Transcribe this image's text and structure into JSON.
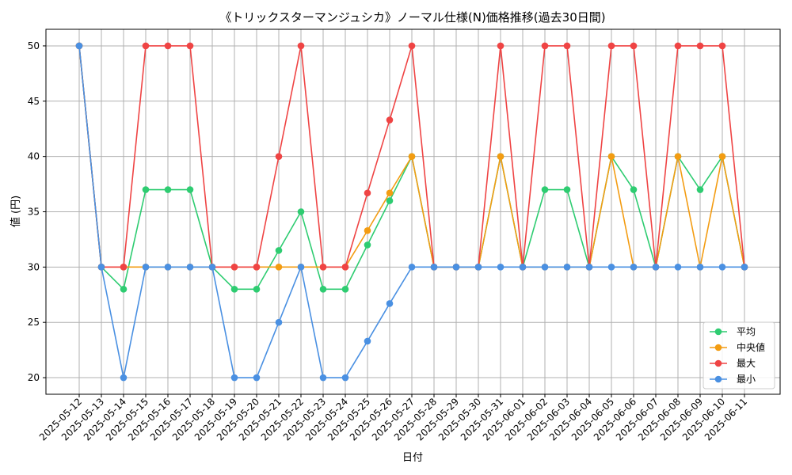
{
  "chart_data": {
    "type": "line",
    "title": "《トリックスターマンジュシカ》ノーマル仕様(N)価格推移(過去30日間)",
    "xlabel": "日付",
    "ylabel": "値 (円)",
    "ylim": [
      18.5,
      51.5
    ],
    "yticks": [
      20,
      25,
      30,
      35,
      40,
      45,
      50
    ],
    "grid": true,
    "legend_position": "bottom-right",
    "categories": [
      "2025-05-12",
      "2025-05-13",
      "2025-05-14",
      "2025-05-15",
      "2025-05-16",
      "2025-05-17",
      "2025-05-18",
      "2025-05-19",
      "2025-05-20",
      "2025-05-21",
      "2025-05-22",
      "2025-05-23",
      "2025-05-24",
      "2025-05-25",
      "2025-05-26",
      "2025-05-27",
      "2025-05-28",
      "2025-05-29",
      "2025-05-30",
      "2025-05-31",
      "2025-06-01",
      "2025-06-02",
      "2025-06-03",
      "2025-06-04",
      "2025-06-05",
      "2025-06-06",
      "2025-06-07",
      "2025-06-08",
      "2025-06-09",
      "2025-06-10",
      "2025-06-11"
    ],
    "series": [
      {
        "name": "平均",
        "color": "#2ecc71",
        "values": [
          50,
          30,
          28,
          37,
          37,
          37,
          30,
          28,
          28,
          31.5,
          35,
          28,
          28,
          32,
          36,
          40,
          30,
          30,
          30,
          40,
          30,
          37,
          37,
          30,
          40,
          37,
          30,
          40,
          37,
          40,
          30
        ]
      },
      {
        "name": "中央値",
        "color": "#f39c12",
        "values": [
          50,
          30,
          30,
          30,
          30,
          30,
          30,
          30,
          30,
          30,
          30,
          30,
          30,
          33.3,
          36.7,
          40,
          30,
          30,
          30,
          40,
          30,
          30,
          30,
          30,
          40,
          30,
          30,
          40,
          30,
          40,
          30
        ]
      },
      {
        "name": "最大",
        "color": "#ef4444",
        "values": [
          50,
          30,
          30,
          50,
          50,
          50,
          30,
          30,
          30,
          40,
          50,
          30,
          30,
          36.7,
          43.3,
          50,
          30,
          30,
          30,
          50,
          30,
          50,
          50,
          30,
          50,
          50,
          30,
          50,
          50,
          50,
          30
        ]
      },
      {
        "name": "最小",
        "color": "#4a90e2",
        "values": [
          50,
          30,
          20,
          30,
          30,
          30,
          30,
          20,
          20,
          25,
          30,
          20,
          20,
          23.3,
          26.7,
          30,
          30,
          30,
          30,
          30,
          30,
          30,
          30,
          30,
          30,
          30,
          30,
          30,
          30,
          30,
          30
        ]
      }
    ]
  }
}
